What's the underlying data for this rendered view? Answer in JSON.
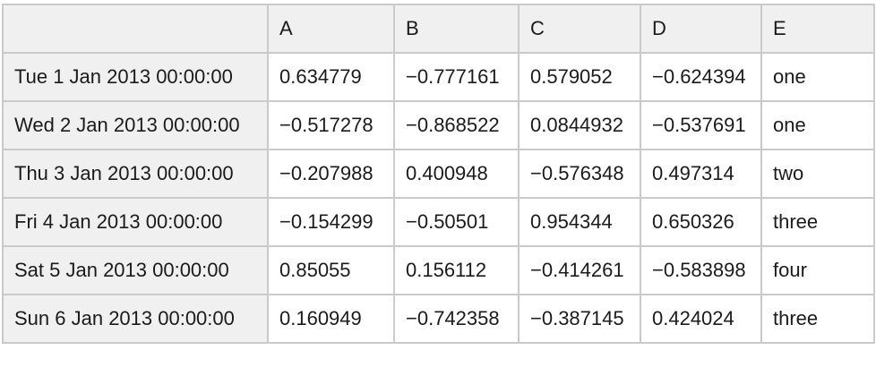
{
  "chart_data": {
    "type": "table",
    "title": "",
    "columns": [
      "",
      "A",
      "B",
      "C",
      "D",
      "E"
    ],
    "rows": [
      {
        "index": "Tue 1 Jan 2013 00:00:00",
        "A": "0.634779",
        "B": "−0.777161",
        "C": "0.579052",
        "D": "−0.624394",
        "E": "one"
      },
      {
        "index": "Wed 2 Jan 2013 00:00:00",
        "A": "−0.517278",
        "B": "−0.868522",
        "C": "0.0844932",
        "D": "−0.537691",
        "E": "one"
      },
      {
        "index": "Thu 3 Jan 2013 00:00:00",
        "A": "−0.207988",
        "B": "0.400948",
        "C": "−0.576348",
        "D": "0.497314",
        "E": "two"
      },
      {
        "index": "Fri 4 Jan 2013 00:00:00",
        "A": "−0.154299",
        "B": "−0.50501",
        "C": "0.954344",
        "D": "0.650326",
        "E": "three"
      },
      {
        "index": "Sat 5 Jan 2013 00:00:00",
        "A": "0.85055",
        "B": "0.156112",
        "C": "−0.414261",
        "D": "−0.583898",
        "E": "four"
      },
      {
        "index": "Sun 6 Jan 2013 00:00:00",
        "A": "0.160949",
        "B": "−0.742358",
        "C": "−0.387145",
        "D": "0.424024",
        "E": "three"
      }
    ],
    "layout": {
      "header_background": "#f0f0f0",
      "index_column_background": "#f0f0f0",
      "cell_background": "#ffffff",
      "border_color": "#cacaca",
      "text_color": "#1b1b1b"
    }
  }
}
